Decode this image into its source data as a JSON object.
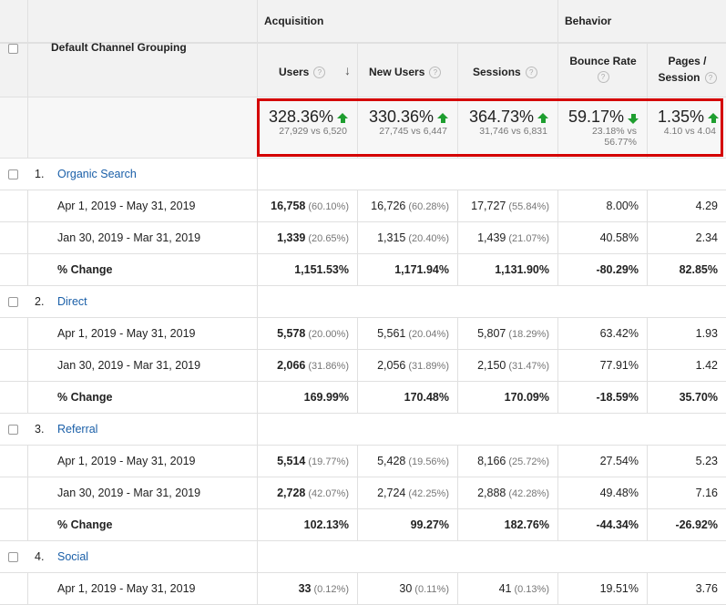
{
  "header": {
    "dimension_label": "Default Channel Grouping",
    "acquisition_label": "Acquisition",
    "behavior_label": "Behavior",
    "users_label": "Users",
    "new_users_label": "New Users",
    "sessions_label": "Sessions",
    "bounce_rate_label": "Bounce Rate",
    "pages_session_line1": "Pages /",
    "pages_session_line2": "Session",
    "help_glyph": "?",
    "sort_glyph": "↓"
  },
  "summary": {
    "users": {
      "change": "328.36%",
      "compare": "27,929 vs 6,520",
      "direction": "up"
    },
    "new_users": {
      "change": "330.36%",
      "compare": "27,745 vs 6,447",
      "direction": "up"
    },
    "sessions": {
      "change": "364.73%",
      "compare": "31,746 vs 6,831",
      "direction": "up"
    },
    "bounce_rate": {
      "change": "59.17%",
      "compare_line1": "23.18% vs",
      "compare_line2": "56.77%",
      "direction": "down"
    },
    "pages_session": {
      "change": "1.35%",
      "compare": "4.10 vs 4.04",
      "direction": "up"
    }
  },
  "groups": [
    {
      "index": "1.",
      "name": "Organic Search",
      "rows": [
        {
          "label": "Apr 1, 2019 - May 31, 2019",
          "users": "16,758",
          "users_pct": "(60.10%)",
          "new_users": "16,726",
          "new_users_pct": "(60.28%)",
          "sessions": "17,727",
          "sessions_pct": "(55.84%)",
          "bounce": "8.00%",
          "pages": "4.29"
        },
        {
          "label": "Jan 30, 2019 - Mar 31, 2019",
          "users": "1,339",
          "users_pct": "(20.65%)",
          "new_users": "1,315",
          "new_users_pct": "(20.40%)",
          "sessions": "1,439",
          "sessions_pct": "(21.07%)",
          "bounce": "40.58%",
          "pages": "2.34"
        }
      ],
      "change": {
        "label": "% Change",
        "users": "1,151.53%",
        "new_users": "1,171.94%",
        "sessions": "1,131.90%",
        "bounce": "-80.29%",
        "pages": "82.85%"
      }
    },
    {
      "index": "2.",
      "name": "Direct",
      "rows": [
        {
          "label": "Apr 1, 2019 - May 31, 2019",
          "users": "5,578",
          "users_pct": "(20.00%)",
          "new_users": "5,561",
          "new_users_pct": "(20.04%)",
          "sessions": "5,807",
          "sessions_pct": "(18.29%)",
          "bounce": "63.42%",
          "pages": "1.93"
        },
        {
          "label": "Jan 30, 2019 - Mar 31, 2019",
          "users": "2,066",
          "users_pct": "(31.86%)",
          "new_users": "2,056",
          "new_users_pct": "(31.89%)",
          "sessions": "2,150",
          "sessions_pct": "(31.47%)",
          "bounce": "77.91%",
          "pages": "1.42"
        }
      ],
      "change": {
        "label": "% Change",
        "users": "169.99%",
        "new_users": "170.48%",
        "sessions": "170.09%",
        "bounce": "-18.59%",
        "pages": "35.70%"
      }
    },
    {
      "index": "3.",
      "name": "Referral",
      "rows": [
        {
          "label": "Apr 1, 2019 - May 31, 2019",
          "users": "5,514",
          "users_pct": "(19.77%)",
          "new_users": "5,428",
          "new_users_pct": "(19.56%)",
          "sessions": "8,166",
          "sessions_pct": "(25.72%)",
          "bounce": "27.54%",
          "pages": "5.23"
        },
        {
          "label": "Jan 30, 2019 - Mar 31, 2019",
          "users": "2,728",
          "users_pct": "(42.07%)",
          "new_users": "2,724",
          "new_users_pct": "(42.25%)",
          "sessions": "2,888",
          "sessions_pct": "(42.28%)",
          "bounce": "49.48%",
          "pages": "7.16"
        }
      ],
      "change": {
        "label": "% Change",
        "users": "102.13%",
        "new_users": "99.27%",
        "sessions": "182.76%",
        "bounce": "-44.34%",
        "pages": "-26.92%"
      }
    },
    {
      "index": "4.",
      "name": "Social",
      "rows": [
        {
          "label": "Apr 1, 2019 - May 31, 2019",
          "users": "33",
          "users_pct": "(0.12%)",
          "new_users": "30",
          "new_users_pct": "(0.11%)",
          "sessions": "41",
          "sessions_pct": "(0.13%)",
          "bounce": "19.51%",
          "pages": "3.76"
        }
      ]
    }
  ]
}
